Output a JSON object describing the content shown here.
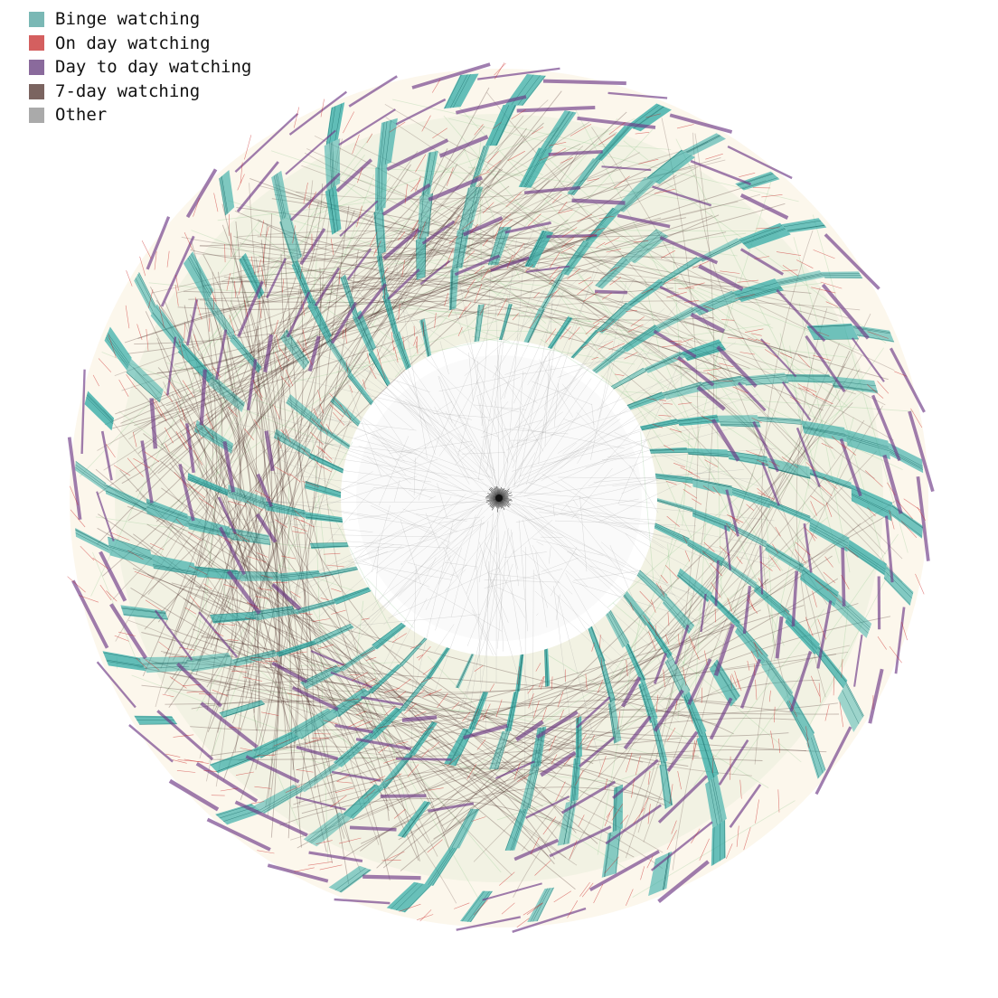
{
  "legend": {
    "items": [
      {
        "label": "Binge watching",
        "color": "#7ab8b5"
      },
      {
        "label": "On day watching",
        "color": "#d45f5f"
      },
      {
        "label": "Day to day watching",
        "color": "#8a6a9c"
      },
      {
        "label": "7-day watching",
        "color": "#7b6460"
      },
      {
        "label": "Other",
        "color": "#aaaaaa"
      }
    ]
  },
  "diagram": {
    "type": "radial-flow",
    "colors": {
      "binge": "#2aa8a4",
      "on_day": "#c81e1e",
      "day_to_day": "#6e3a87",
      "seven_day": "#3a1a16",
      "other": "#9a9a9a",
      "green_haze": "#7fbf7f",
      "cream": "#f6e7c9"
    }
  }
}
